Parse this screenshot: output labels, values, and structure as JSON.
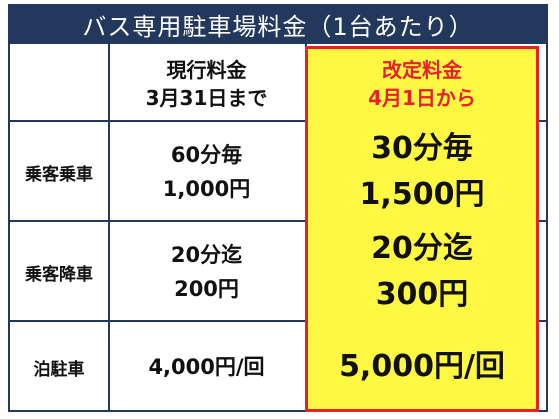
{
  "title": "バス専用駐車場料金（1台あたり）",
  "header": {
    "current": [
      "現行料金",
      "3月31日まで"
    ],
    "revised": [
      "改定料金",
      "4月1日から"
    ]
  },
  "rows": [
    {
      "label": "乗客乗車",
      "current": [
        "60分毎",
        "1,000円"
      ],
      "revised": [
        "30分毎",
        "1,500円"
      ]
    },
    {
      "label": "乗客降車",
      "current": [
        "20分迄",
        "200円"
      ],
      "revised": [
        "20分迄",
        "300円"
      ]
    },
    {
      "label": "泊駐車",
      "current": [
        "4,000円/回"
      ],
      "revised": [
        "5,000円/回"
      ]
    }
  ]
}
